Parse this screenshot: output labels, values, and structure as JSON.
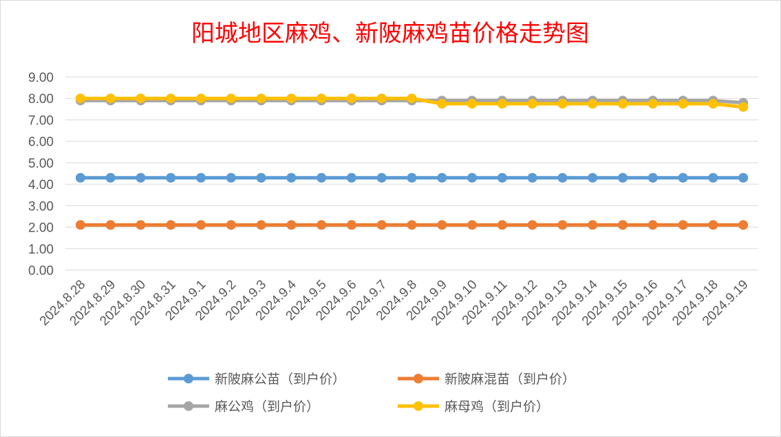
{
  "chart_data": {
    "type": "line",
    "title": "阳城地区麻鸡、新陂麻鸡苗价格走势图",
    "xlabel": "",
    "ylabel": "",
    "ylim": [
      0,
      9
    ],
    "yticks": [
      "0.00",
      "1.00",
      "2.00",
      "3.00",
      "4.00",
      "5.00",
      "6.00",
      "7.00",
      "8.00",
      "9.00"
    ],
    "grid": true,
    "legend_position": "bottom",
    "categories": [
      "2024.8.28",
      "2024.8.29",
      "2024.8.30",
      "2024.8.31",
      "2024.9.1",
      "2024.9.2",
      "2024.9.3",
      "2024.9.4",
      "2024.9.5",
      "2024.9.6",
      "2024.9.7",
      "2024.9.8",
      "2024.9.9",
      "2024.9.10",
      "2024.9.11",
      "2024.9.12",
      "2024.9.13",
      "2024.9.14",
      "2024.9.15",
      "2024.9.16",
      "2024.9.17",
      "2024.9.18",
      "2024.9.19"
    ],
    "series": [
      {
        "name": "新陂麻公苗（到户价）",
        "color": "#5b9bd5",
        "values": [
          4.3,
          4.3,
          4.3,
          4.3,
          4.3,
          4.3,
          4.3,
          4.3,
          4.3,
          4.3,
          4.3,
          4.3,
          4.3,
          4.3,
          4.3,
          4.3,
          4.3,
          4.3,
          4.3,
          4.3,
          4.3,
          4.3,
          4.3
        ]
      },
      {
        "name": "新陂麻混苗（到户价）",
        "color": "#ed7d31",
        "values": [
          2.1,
          2.1,
          2.1,
          2.1,
          2.1,
          2.1,
          2.1,
          2.1,
          2.1,
          2.1,
          2.1,
          2.1,
          2.1,
          2.1,
          2.1,
          2.1,
          2.1,
          2.1,
          2.1,
          2.1,
          2.1,
          2.1,
          2.1
        ]
      },
      {
        "name": "麻公鸡（到户价）",
        "color": "#a5a5a5",
        "values": [
          7.9,
          7.9,
          7.9,
          7.9,
          7.9,
          7.9,
          7.9,
          7.9,
          7.9,
          7.9,
          7.9,
          7.9,
          7.9,
          7.9,
          7.9,
          7.9,
          7.9,
          7.9,
          7.9,
          7.9,
          7.9,
          7.9,
          7.8
        ]
      },
      {
        "name": "麻母鸡（到户价）",
        "color": "#ffc000",
        "values": [
          8.0,
          8.0,
          8.0,
          8.0,
          8.0,
          8.0,
          8.0,
          8.0,
          8.0,
          8.0,
          8.0,
          8.0,
          7.75,
          7.75,
          7.75,
          7.75,
          7.75,
          7.75,
          7.75,
          7.75,
          7.75,
          7.75,
          7.6
        ]
      }
    ]
  }
}
